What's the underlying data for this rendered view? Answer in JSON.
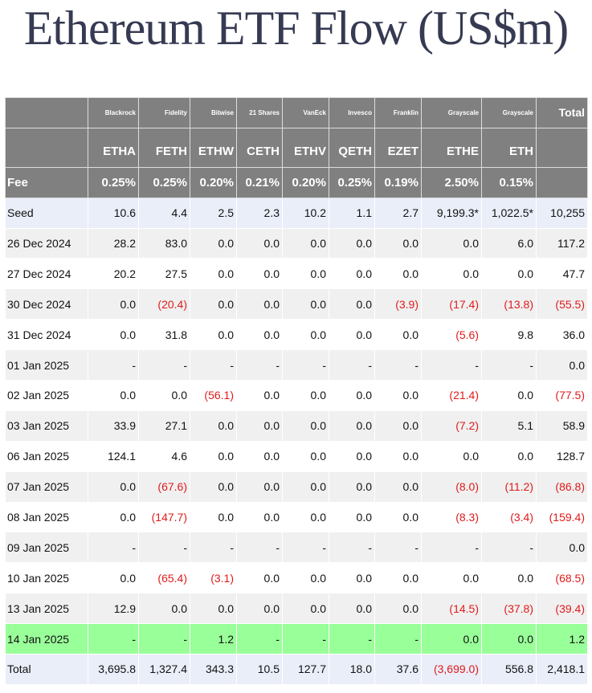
{
  "title": "Ethereum ETF Flow (US$m)",
  "header": {
    "issuers": [
      "Blackrock",
      "Fidelity",
      "Bitwise",
      "21 Shares",
      "VanEck",
      "Invesco",
      "Franklin",
      "Grayscale",
      "Grayscale"
    ],
    "total_label": "Total",
    "tickers": [
      "ETHA",
      "FETH",
      "ETHW",
      "CETH",
      "ETHV",
      "QETH",
      "EZET",
      "ETHE",
      "ETH"
    ],
    "fee_label": "Fee",
    "fees": [
      "0.25%",
      "0.25%",
      "0.20%",
      "0.21%",
      "0.20%",
      "0.25%",
      "0.19%",
      "2.50%",
      "0.15%"
    ]
  },
  "rows": [
    {
      "label": "Seed",
      "cells": [
        "10.6",
        "4.4",
        "2.5",
        "2.3",
        "10.2",
        "1.1",
        "2.7",
        "9,199.3*",
        "1,022.5*",
        "10,255"
      ]
    },
    {
      "label": "26 Dec 2024",
      "cells": [
        "28.2",
        "83.0",
        "0.0",
        "0.0",
        "0.0",
        "0.0",
        "0.0",
        "0.0",
        "6.0",
        "117.2"
      ]
    },
    {
      "label": "27 Dec 2024",
      "cells": [
        "20.2",
        "27.5",
        "0.0",
        "0.0",
        "0.0",
        "0.0",
        "0.0",
        "0.0",
        "0.0",
        "47.7"
      ]
    },
    {
      "label": "30 Dec 2024",
      "cells": [
        "0.0",
        "(20.4)",
        "0.0",
        "0.0",
        "0.0",
        "0.0",
        "(3.9)",
        "(17.4)",
        "(13.8)",
        "(55.5)"
      ]
    },
    {
      "label": "31 Dec 2024",
      "cells": [
        "0.0",
        "31.8",
        "0.0",
        "0.0",
        "0.0",
        "0.0",
        "0.0",
        "(5.6)",
        "9.8",
        "36.0"
      ]
    },
    {
      "label": "01 Jan 2025",
      "cells": [
        "-",
        "-",
        "-",
        "-",
        "-",
        "-",
        "-",
        "-",
        "-",
        "0.0"
      ]
    },
    {
      "label": "02 Jan 2025",
      "cells": [
        "0.0",
        "0.0",
        "(56.1)",
        "0.0",
        "0.0",
        "0.0",
        "0.0",
        "(21.4)",
        "0.0",
        "(77.5)"
      ]
    },
    {
      "label": "03 Jan 2025",
      "cells": [
        "33.9",
        "27.1",
        "0.0",
        "0.0",
        "0.0",
        "0.0",
        "0.0",
        "(7.2)",
        "5.1",
        "58.9"
      ]
    },
    {
      "label": "06 Jan 2025",
      "cells": [
        "124.1",
        "4.6",
        "0.0",
        "0.0",
        "0.0",
        "0.0",
        "0.0",
        "0.0",
        "0.0",
        "128.7"
      ]
    },
    {
      "label": "07 Jan 2025",
      "cells": [
        "0.0",
        "(67.6)",
        "0.0",
        "0.0",
        "0.0",
        "0.0",
        "0.0",
        "(8.0)",
        "(11.2)",
        "(86.8)"
      ]
    },
    {
      "label": "08 Jan 2025",
      "cells": [
        "0.0",
        "(147.7)",
        "0.0",
        "0.0",
        "0.0",
        "0.0",
        "0.0",
        "(8.3)",
        "(3.4)",
        "(159.4)"
      ]
    },
    {
      "label": "09 Jan 2025",
      "cells": [
        "-",
        "-",
        "-",
        "-",
        "-",
        "-",
        "-",
        "-",
        "-",
        "0.0"
      ]
    },
    {
      "label": "10 Jan 2025",
      "cells": [
        "0.0",
        "(65.4)",
        "(3.1)",
        "0.0",
        "0.0",
        "0.0",
        "0.0",
        "0.0",
        "0.0",
        "(68.5)"
      ]
    },
    {
      "label": "13 Jan 2025",
      "cells": [
        "12.9",
        "0.0",
        "0.0",
        "0.0",
        "0.0",
        "0.0",
        "0.0",
        "(14.5)",
        "(37.8)",
        "(39.4)"
      ]
    },
    {
      "label": "14 Jan 2025",
      "cells": [
        "-",
        "-",
        "1.2",
        "-",
        "-",
        "-",
        "-",
        "0.0",
        "0.0",
        "1.2"
      ]
    }
  ],
  "total": {
    "label": "Total",
    "cells": [
      "3,695.8",
      "1,327.4",
      "343.3",
      "10.5",
      "127.7",
      "18.0",
      "37.6",
      "(3,699.0)",
      "556.8",
      "2,418.1"
    ]
  }
}
